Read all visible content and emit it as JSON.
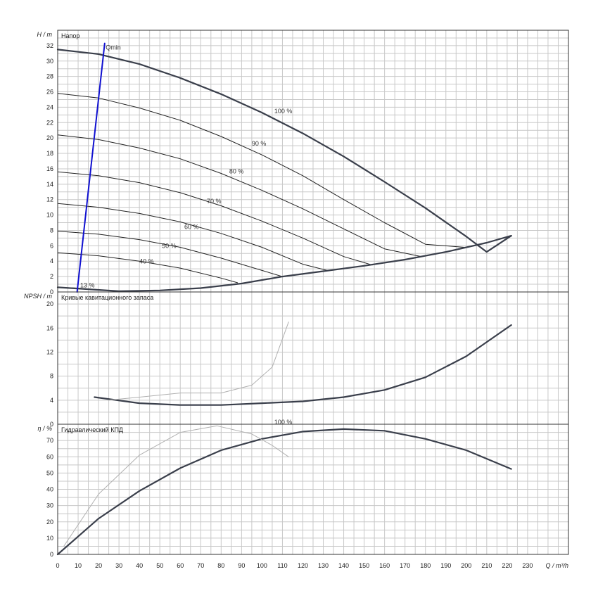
{
  "chart_data": [
    {
      "type": "line",
      "title": "Напор",
      "ylabel": "H / m",
      "xlim": [
        0,
        250
      ],
      "ylim": [
        0,
        34
      ],
      "yticks": [
        0,
        2,
        4,
        6,
        8,
        10,
        12,
        14,
        16,
        18,
        20,
        22,
        24,
        26,
        28,
        30,
        32
      ],
      "grid": true,
      "series": [
        {
          "name": "100 %",
          "x": [
            0,
            20,
            40,
            60,
            80,
            100,
            120,
            140,
            160,
            180,
            200,
            210,
            222
          ],
          "y": [
            31.5,
            30.9,
            29.6,
            27.8,
            25.7,
            23.3,
            20.6,
            17.6,
            14.3,
            10.9,
            7.2,
            5.2,
            7.3
          ]
        },
        {
          "name": "90 %",
          "x": [
            0,
            20,
            40,
            60,
            80,
            100,
            120,
            140,
            160,
            180,
            199
          ],
          "y": [
            25.8,
            25.2,
            23.9,
            22.3,
            20.2,
            17.8,
            15.1,
            12.0,
            9.0,
            6.2,
            5.8
          ]
        },
        {
          "name": "80 %",
          "x": [
            0,
            20,
            40,
            60,
            80,
            100,
            120,
            140,
            160,
            178
          ],
          "y": [
            20.4,
            19.8,
            18.7,
            17.3,
            15.4,
            13.2,
            10.8,
            8.2,
            5.6,
            4.6
          ]
        },
        {
          "name": "70 %",
          "x": [
            0,
            20,
            40,
            60,
            80,
            100,
            120,
            140,
            154
          ],
          "y": [
            15.6,
            15.1,
            14.2,
            12.9,
            11.2,
            9.2,
            7.0,
            4.6,
            3.5
          ]
        },
        {
          "name": "60 %",
          "x": [
            0,
            20,
            40,
            60,
            80,
            100,
            120,
            132
          ],
          "y": [
            11.5,
            11.0,
            10.2,
            9.1,
            7.6,
            5.8,
            3.6,
            2.8
          ]
        },
        {
          "name": "50 %",
          "x": [
            0,
            20,
            40,
            60,
            80,
            100,
            110
          ],
          "y": [
            7.9,
            7.5,
            6.8,
            5.8,
            4.4,
            2.8,
            2.0
          ]
        },
        {
          "name": "40 %",
          "x": [
            0,
            20,
            40,
            60,
            80,
            88
          ],
          "y": [
            5.1,
            4.7,
            4.0,
            3.1,
            1.8,
            1.2
          ]
        },
        {
          "name": "13 %",
          "x": [
            0,
            10,
            20,
            30
          ],
          "y": [
            0.6,
            0.5,
            0.3,
            0.1
          ]
        },
        {
          "name": "",
          "x": [
            0,
            30,
            50,
            70,
            90,
            110,
            130,
            150,
            170,
            190,
            210,
            222
          ],
          "y": [
            0.6,
            0.1,
            0.2,
            0.5,
            1.1,
            2.0,
            2.7,
            3.4,
            4.2,
            5.2,
            6.4,
            7.3
          ]
        },
        {
          "name": "Qmin",
          "x": [
            9.5,
            23
          ],
          "y": [
            0,
            32.3
          ]
        }
      ],
      "annotations": [
        "Qmin",
        "100 %",
        "90 %",
        "80 %",
        "70 %",
        "60 %",
        "50 %",
        "40 %",
        "13 %"
      ]
    },
    {
      "type": "line",
      "title": "Кривые кавитационного запаса",
      "ylabel": "NPSH / m",
      "xlim": [
        0,
        250
      ],
      "ylim": [
        0,
        22
      ],
      "yticks": [
        0,
        4,
        8,
        12,
        16,
        20
      ],
      "grid": true,
      "series": [
        {
          "name": "",
          "x": [
            18,
            40,
            60,
            80,
            100,
            120,
            140,
            160,
            180,
            200,
            222
          ],
          "y": [
            4.5,
            3.5,
            3.2,
            3.2,
            3.5,
            3.8,
            4.5,
            5.7,
            7.8,
            11.3,
            16.5
          ]
        },
        {
          "name": "",
          "x": [
            25,
            40,
            60,
            80,
            95,
            105,
            113
          ],
          "y": [
            4.0,
            4.5,
            5.2,
            5.2,
            6.5,
            9.5,
            17.0
          ]
        }
      ]
    },
    {
      "type": "line",
      "title": "Гидравлический КПД",
      "ylabel": "η / %",
      "xlabel": "Q / m³/h",
      "xlim": [
        0,
        250
      ],
      "ylim": [
        0,
        80
      ],
      "xticks": [
        0,
        10,
        20,
        30,
        40,
        50,
        60,
        70,
        80,
        90,
        100,
        110,
        120,
        130,
        140,
        150,
        160,
        170,
        180,
        190,
        200,
        210,
        220,
        230
      ],
      "yticks": [
        0,
        10,
        20,
        30,
        40,
        50,
        60,
        70
      ],
      "grid": true,
      "series": [
        {
          "name": "100 %",
          "x": [
            0,
            20,
            40,
            60,
            80,
            100,
            120,
            140,
            160,
            180,
            200,
            222
          ],
          "y": [
            0,
            22,
            39,
            53,
            64,
            71,
            75.5,
            77,
            76,
            71,
            64,
            52.5
          ]
        },
        {
          "name": "",
          "x": [
            3,
            20,
            40,
            60,
            78,
            95,
            105,
            113
          ],
          "y": [
            5,
            37,
            61,
            75,
            79,
            74,
            67,
            60
          ]
        }
      ],
      "annotations": [
        "100 %"
      ]
    }
  ]
}
